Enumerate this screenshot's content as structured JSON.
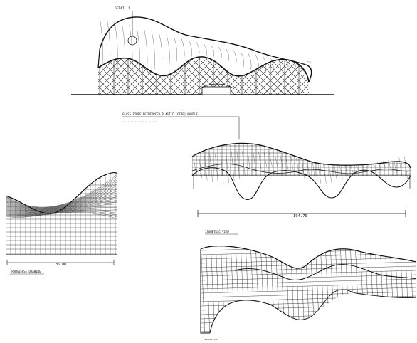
{
  "sheet": {
    "callout_label": "DETAIL 1",
    "section_title": "GLASS FIBRE REINFORCED PLASTIC (GFRP) MANTLE",
    "section_notes": [
      "-- ----- -- ---- - ------",
      "------"
    ],
    "width_dimension": "104.70",
    "depth_dimension": "35.00",
    "bottom_left_caption": "TRANSVERSE DRAWING",
    "perspective_caption": "ISOMETRIC VIEW",
    "footer_caption": "PERSPECTIVE"
  },
  "colors": {
    "ink": "#111111",
    "line": "#333333",
    "paper": "#ffffff"
  }
}
